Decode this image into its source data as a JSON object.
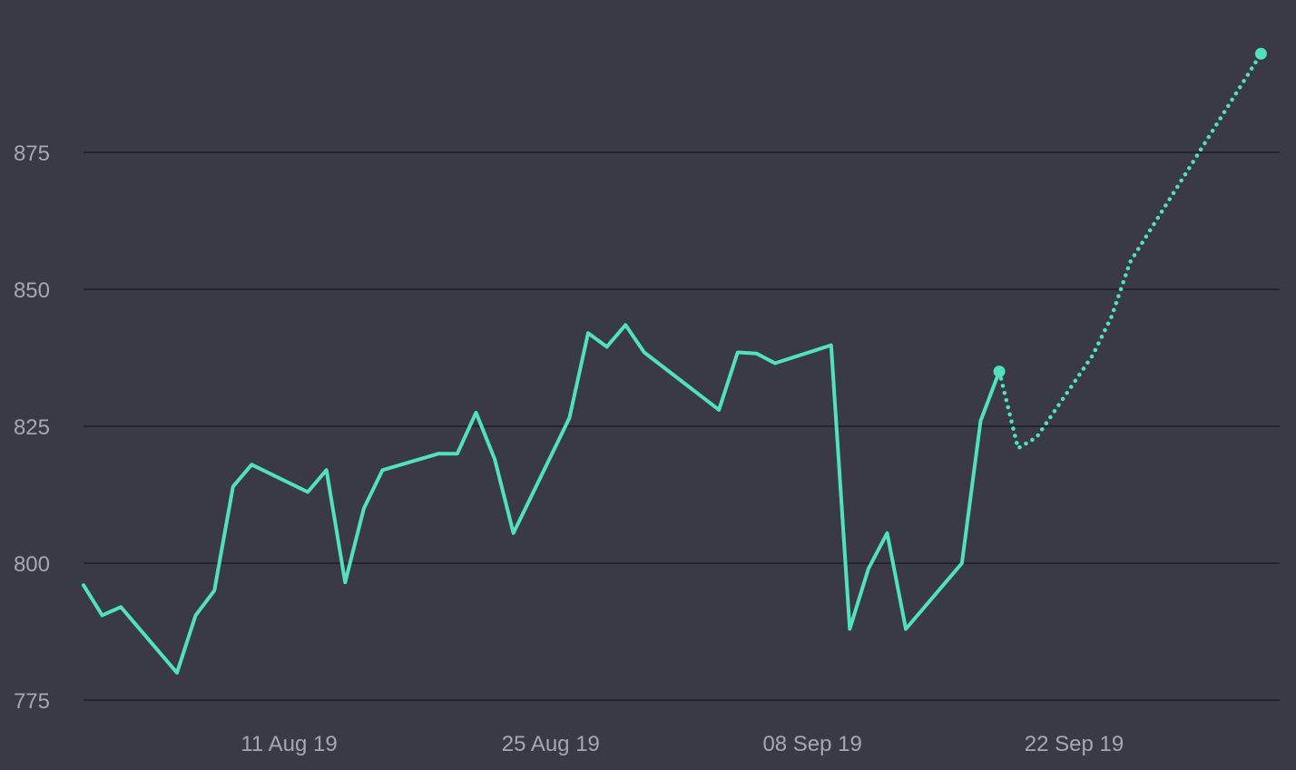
{
  "chart_data": {
    "type": "line",
    "title": "",
    "xlabel": "",
    "ylabel": "",
    "colors": {
      "background": "#393a45",
      "grid": "#24252d",
      "line": "#52e2bb",
      "tick": "#a6a7b2"
    },
    "grid": true,
    "y_ticks": [
      "775",
      "800",
      "825",
      "850",
      "875"
    ],
    "y_tick_values": [
      775,
      800,
      825,
      850,
      875
    ],
    "ylim": [
      775,
      897
    ],
    "x_ticks": [
      "11 Aug 19",
      "25 Aug 19",
      "08 Sep 19",
      "22 Sep 19"
    ],
    "x_tick_values": [
      "2019-08-11",
      "2019-08-25",
      "2019-09-08",
      "2019-09-22"
    ],
    "xlim": [
      "2019-07-31",
      "2019-10-03"
    ],
    "series": [
      {
        "style": "solid",
        "x": [
          "2019-07-31",
          "2019-08-01",
          "2019-08-02",
          "2019-08-05",
          "2019-08-06",
          "2019-08-07",
          "2019-08-08",
          "2019-08-09",
          "2019-08-12",
          "2019-08-13",
          "2019-08-14",
          "2019-08-15",
          "2019-08-16",
          "2019-08-19",
          "2019-08-20",
          "2019-08-21",
          "2019-08-22",
          "2019-08-23",
          "2019-08-26",
          "2019-08-27",
          "2019-08-28",
          "2019-08-29",
          "2019-08-30",
          "2019-09-03",
          "2019-09-04",
          "2019-09-05",
          "2019-09-06",
          "2019-09-09",
          "2019-09-10",
          "2019-09-11",
          "2019-09-12",
          "2019-09-13",
          "2019-09-16",
          "2019-09-17",
          "2019-09-18"
        ],
        "values": [
          796,
          790.5,
          792,
          780,
          790.5,
          795,
          814,
          818,
          813,
          817,
          796.5,
          810,
          817,
          820,
          820,
          827.5,
          819,
          805.5,
          826.5,
          842,
          839.5,
          843.5,
          838.5,
          828,
          838.5,
          838.3,
          836.5,
          839.8,
          788,
          799,
          805.5,
          788,
          800,
          826,
          835
        ]
      },
      {
        "style": "dotted",
        "x": [
          "2019-09-18",
          "2019-09-19",
          "2019-09-20",
          "2019-09-23",
          "2019-09-24",
          "2019-09-25",
          "2019-10-02"
        ],
        "values": [
          835,
          821,
          823,
          838,
          845,
          855,
          893
        ]
      }
    ]
  }
}
